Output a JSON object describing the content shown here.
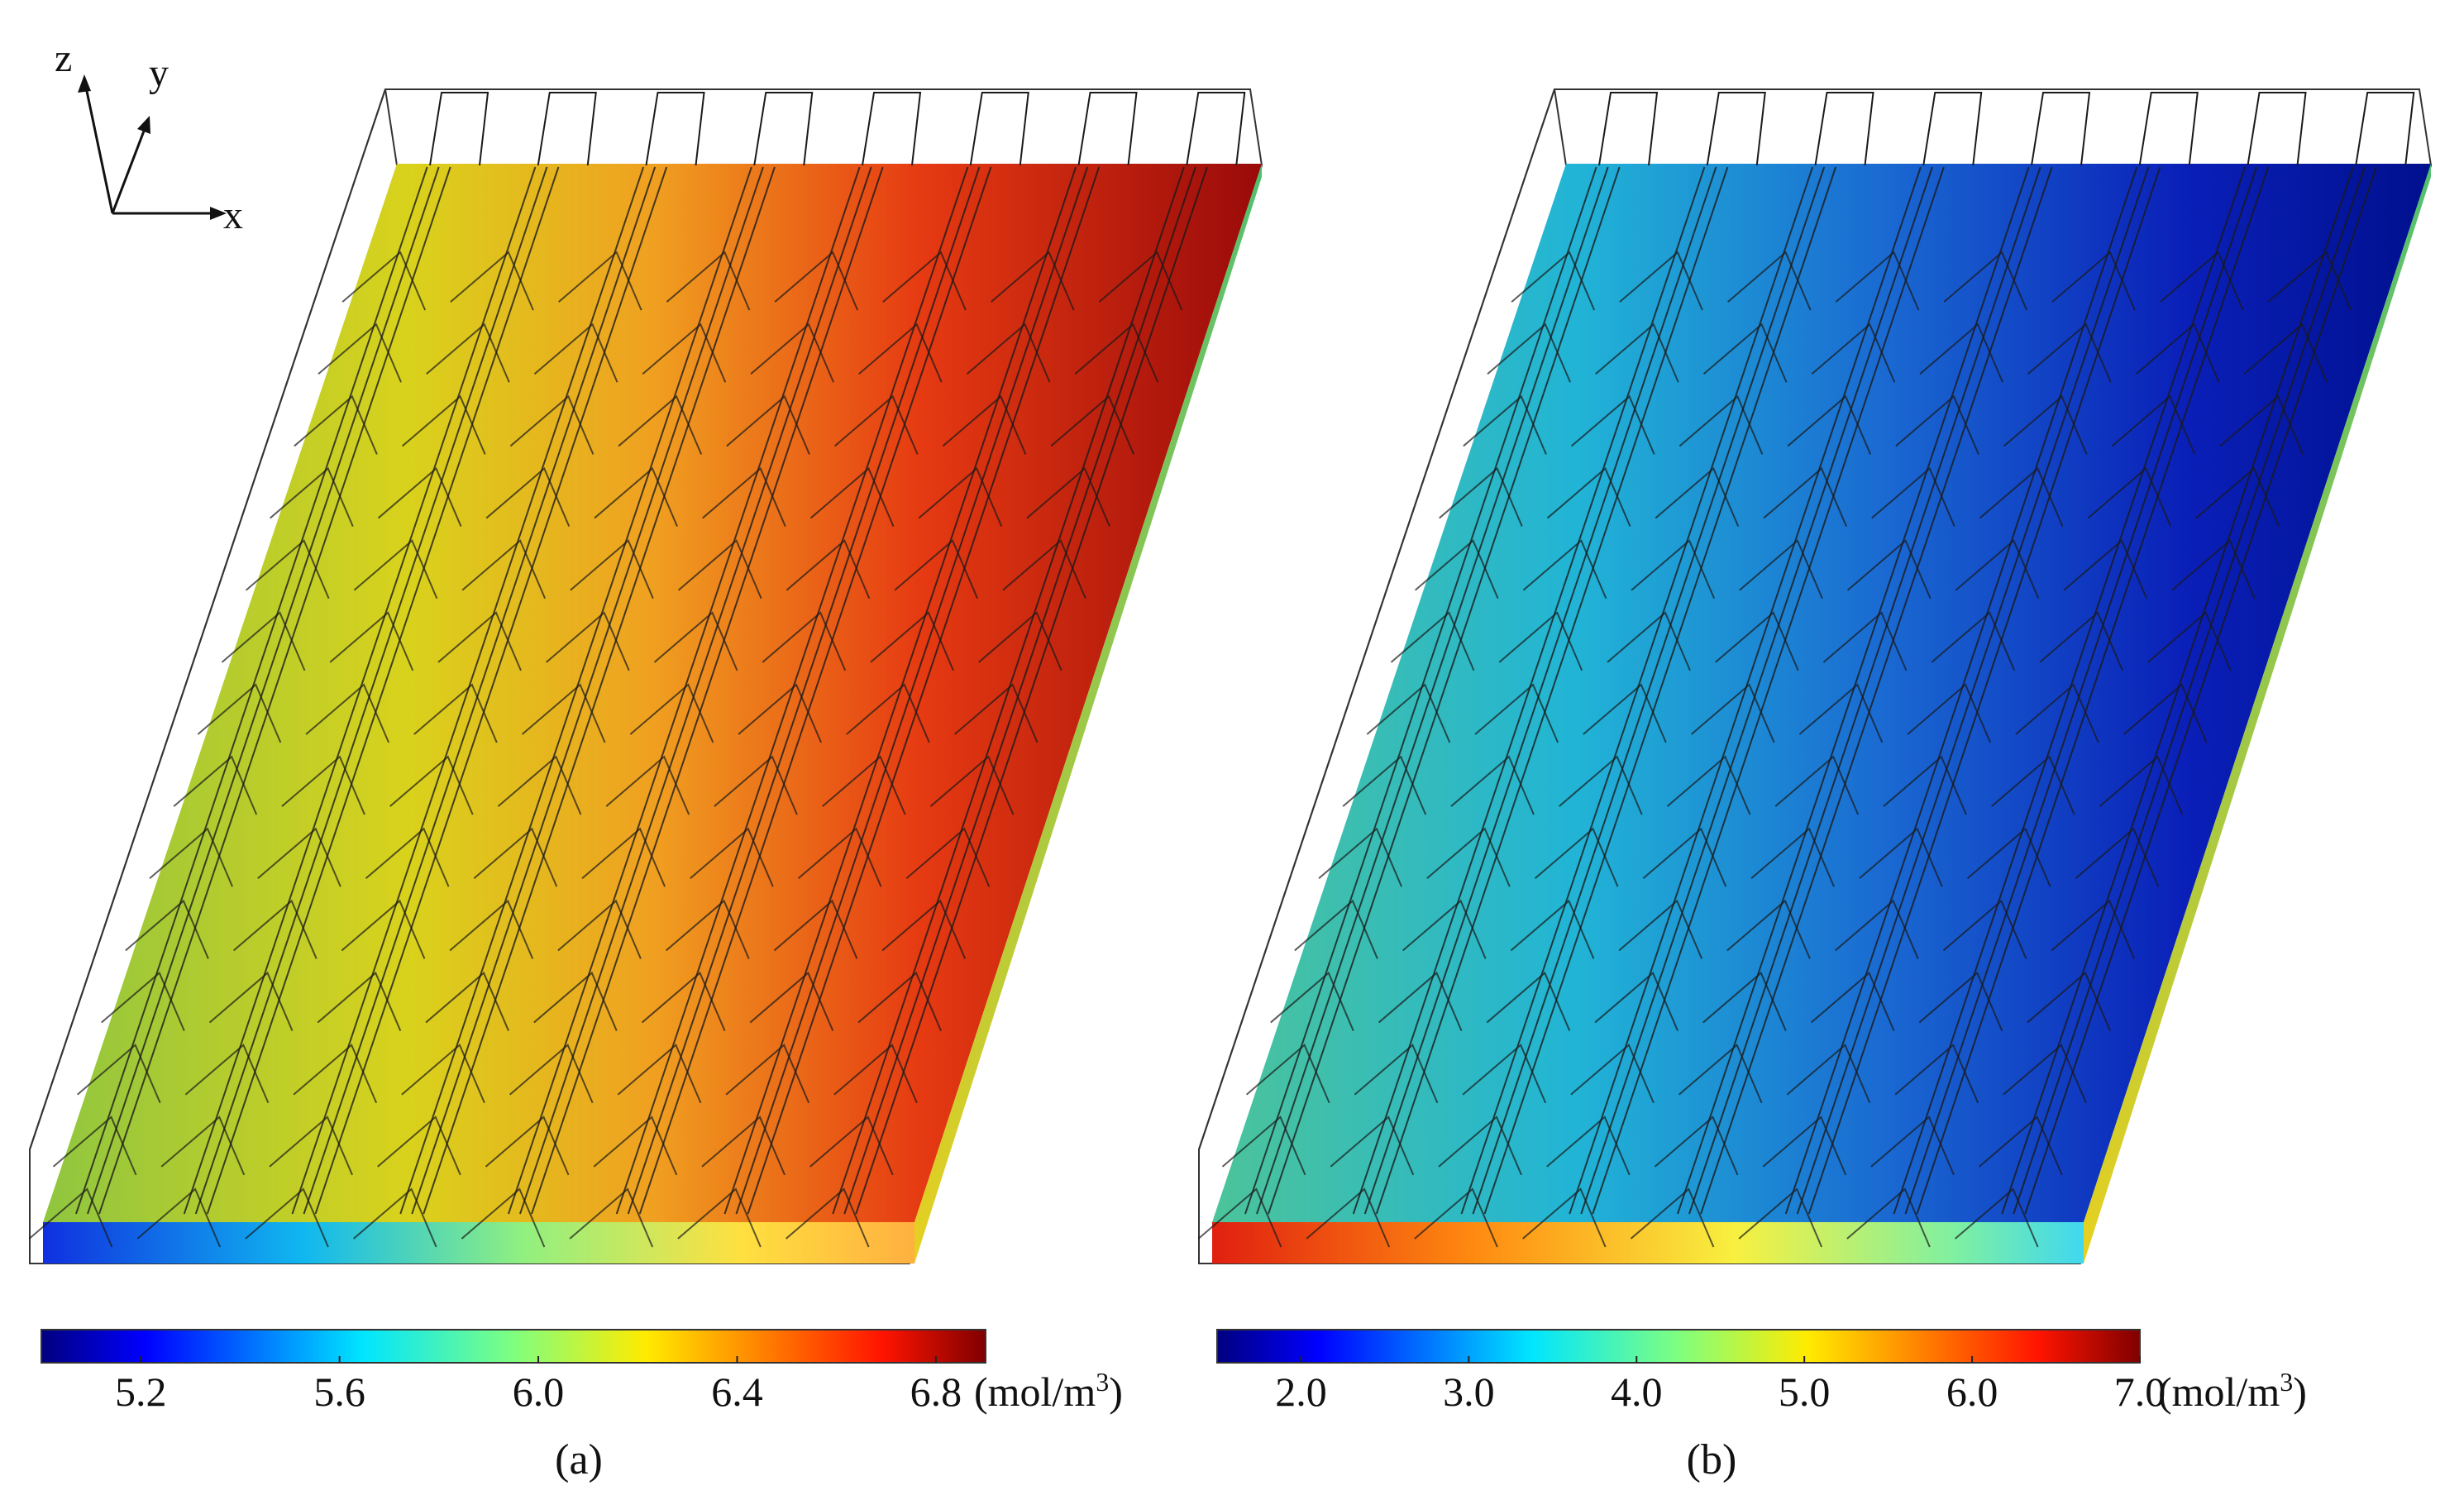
{
  "figure": {
    "axes_labels": {
      "x": "x",
      "y": "y",
      "z": "z"
    },
    "panels": [
      {
        "id": "a",
        "caption": "(a)",
        "colormap": "jet",
        "field_direction": "increasing-with-x",
        "colorbar": {
          "min": 5.0,
          "max": 6.9,
          "ticks": [
            "5.2",
            "5.6",
            "6.0",
            "6.4",
            "6.8"
          ],
          "tick_values": [
            5.2,
            5.6,
            6.0,
            6.4,
            6.8
          ],
          "unit_prefix": "(mol/m",
          "unit_sup": "3",
          "unit_suffix": ")"
        }
      },
      {
        "id": "b",
        "caption": "(b)",
        "colormap": "jet",
        "field_direction": "decreasing-with-x",
        "colorbar": {
          "min": 1.5,
          "max": 7.0,
          "ticks": [
            "2.0",
            "3.0",
            "4.0",
            "5.0",
            "6.0",
            "7.0"
          ],
          "tick_values": [
            2.0,
            3.0,
            4.0,
            5.0,
            6.0,
            7.0
          ],
          "unit_prefix": "(mol/m",
          "unit_sup": "3",
          "unit_suffix": ")"
        }
      }
    ]
  }
}
